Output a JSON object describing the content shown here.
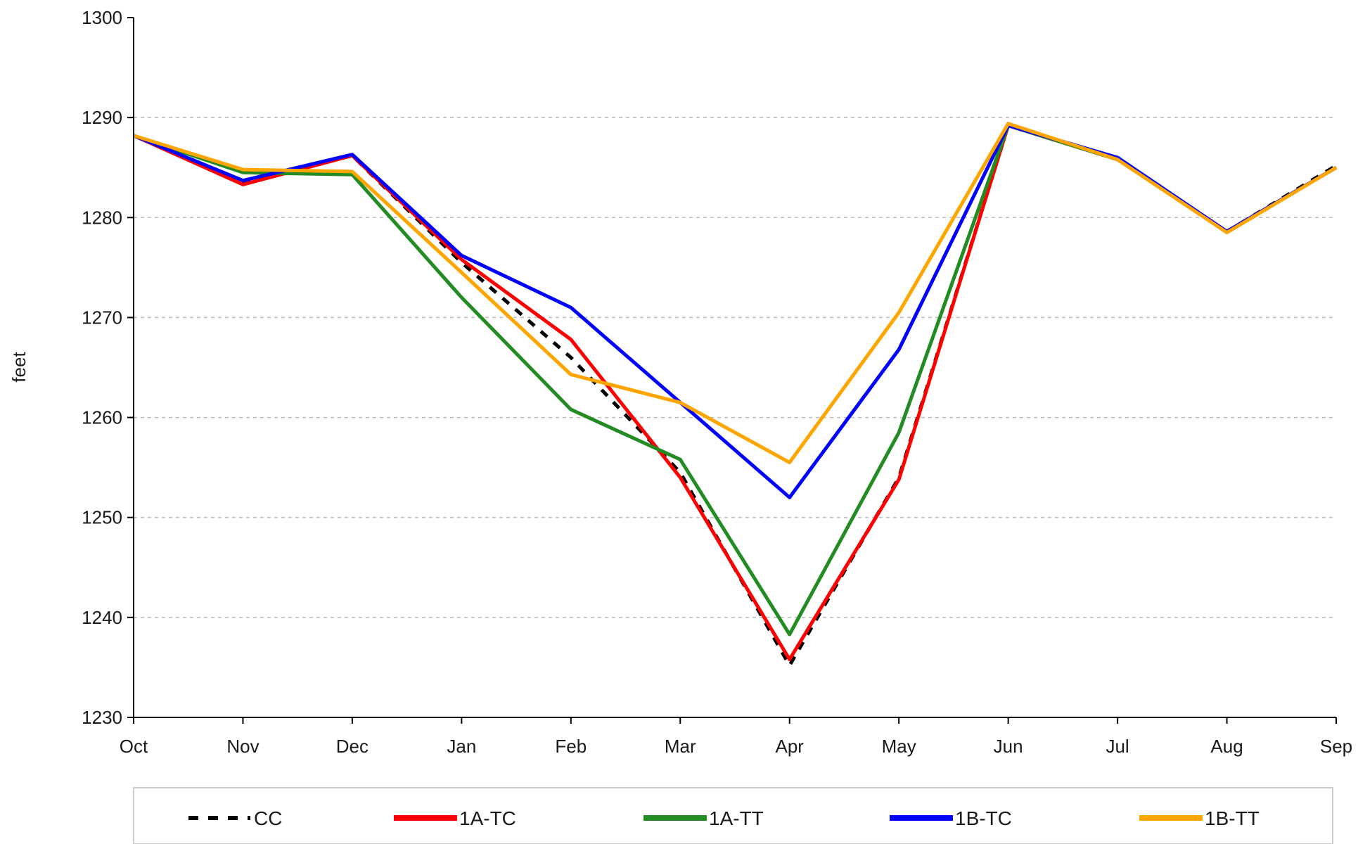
{
  "chart_data": {
    "type": "line",
    "title": "",
    "xlabel": "",
    "ylabel": "feet",
    "ylim": [
      1230,
      1300
    ],
    "yticks": [
      "1230",
      "1240",
      "1250",
      "1260",
      "1270",
      "1280",
      "1290",
      "1300"
    ],
    "categories": [
      "Oct",
      "Nov",
      "Dec",
      "Jan",
      "Feb",
      "Mar",
      "Apr",
      "May",
      "Jun",
      "Jul",
      "Aug",
      "Sep"
    ],
    "grid": true,
    "legend_position": "bottom",
    "series": [
      {
        "name": "CC",
        "color": "#000000",
        "dash": true,
        "values": [
          1288.2,
          1283.5,
          1286.2,
          1275.5,
          1266.0,
          1254.5,
          1235.2,
          1254.0,
          1289.2,
          1285.8,
          1278.6,
          1285.2
        ]
      },
      {
        "name": "1A-TC",
        "color": "#ff0000",
        "dash": false,
        "values": [
          1288.2,
          1283.3,
          1286.2,
          1275.8,
          1267.8,
          1254.0,
          1235.8,
          1253.8,
          1289.2,
          1285.8,
          1278.6,
          1285.0
        ]
      },
      {
        "name": "1A-TT",
        "color": "#228b22",
        "dash": false,
        "values": [
          1288.2,
          1284.5,
          1284.3,
          1272.0,
          1260.8,
          1255.8,
          1238.3,
          1258.5,
          1289.2,
          1285.8,
          1278.6,
          1285.0
        ]
      },
      {
        "name": "1B-TC",
        "color": "#0000ff",
        "dash": false,
        "values": [
          1288.2,
          1283.7,
          1286.3,
          1276.2,
          1271.0,
          1261.5,
          1252.0,
          1266.8,
          1289.2,
          1286.0,
          1278.6,
          1285.0
        ]
      },
      {
        "name": "1B-TT",
        "color": "#ffa500",
        "dash": false,
        "values": [
          1288.2,
          1284.8,
          1284.6,
          1274.5,
          1264.3,
          1261.5,
          1255.5,
          1270.5,
          1289.4,
          1285.8,
          1278.5,
          1285.0
        ]
      }
    ]
  }
}
